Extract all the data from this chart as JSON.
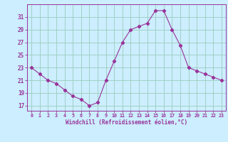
{
  "x": [
    0,
    1,
    2,
    3,
    4,
    5,
    6,
    7,
    8,
    9,
    10,
    11,
    12,
    13,
    14,
    15,
    16,
    17,
    18,
    19,
    20,
    21,
    22,
    23
  ],
  "y": [
    23,
    22,
    21,
    20.5,
    19.5,
    18.5,
    18,
    17,
    17.5,
    21,
    24,
    27,
    29,
    29.5,
    30,
    32,
    32,
    29,
    26.5,
    23,
    22.5,
    22,
    21.5,
    21
  ],
  "line_color": "#993399",
  "marker": "D",
  "markersize": 2.2,
  "bg_color": "#cceeff",
  "grid_color": "#99ccbb",
  "xlabel": "Windchill (Refroidissement éolien,°C)",
  "xlabel_color": "#993399",
  "tick_color": "#993399",
  "yticks": [
    17,
    19,
    21,
    23,
    25,
    27,
    29,
    31
  ],
  "xticks": [
    0,
    1,
    2,
    3,
    4,
    5,
    6,
    7,
    8,
    9,
    10,
    11,
    12,
    13,
    14,
    15,
    16,
    17,
    18,
    19,
    20,
    21,
    22,
    23
  ],
  "ylim": [
    16.2,
    33.0
  ],
  "xlim": [
    -0.5,
    23.5
  ]
}
